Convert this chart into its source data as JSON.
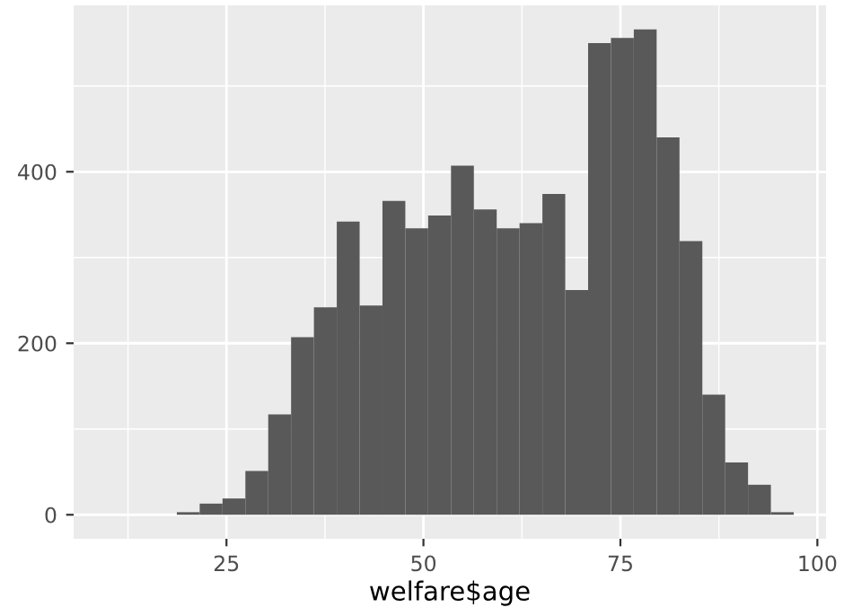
{
  "chart_data": {
    "type": "histogram",
    "xlabel": "welfare$age",
    "bins": [
      10.0,
      12.9,
      15.8,
      18.7,
      21.6,
      24.5,
      27.4,
      30.3,
      33.2,
      36.1,
      39.0,
      41.9,
      44.8,
      47.7,
      50.6,
      53.5,
      56.4,
      59.3,
      62.2,
      65.1,
      68.0,
      70.9,
      73.8,
      76.7,
      79.6,
      82.5,
      85.4,
      88.3,
      91.2,
      94.1,
      97.0
    ],
    "values": [
      0,
      0,
      0,
      3,
      13,
      19,
      51,
      117,
      207,
      242,
      342,
      244,
      366,
      334,
      349,
      407,
      356,
      334,
      340,
      374,
      262,
      550,
      556,
      566,
      440,
      319,
      140,
      61,
      35,
      3
    ],
    "color": "#595959",
    "xlim": [
      5.6,
      101.1
    ],
    "xticks": [
      25,
      50,
      75,
      100
    ],
    "ylim": [
      -28,
      594
    ],
    "yticks": [
      0,
      200,
      400
    ],
    "grid": true
  }
}
